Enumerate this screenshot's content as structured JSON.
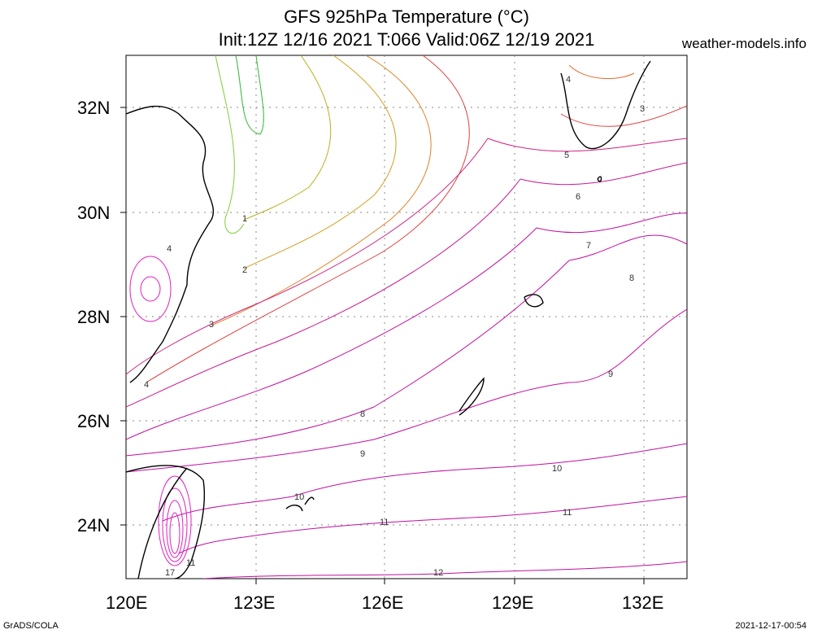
{
  "title_line1": "GFS 925hPa Temperature (°C)",
  "title_line2": "Init:12Z 12/16 2021 T:066 Valid:06Z 12/19 2021",
  "site": "weather-models.info",
  "footer_left": "GrADS/COLA",
  "footer_right": "2021-12-17-00:54",
  "lat_labels": [
    "32N",
    "30N",
    "28N",
    "26N",
    "24N"
  ],
  "lon_labels": [
    "120E",
    "123E",
    "126E",
    "129E",
    "132E"
  ],
  "contour_labels": [
    "1",
    "2",
    "3",
    "4",
    "4",
    "5",
    "6",
    "7",
    "8",
    "8",
    "9",
    "9",
    "10",
    "10",
    "11",
    "11",
    "11",
    "12",
    "17",
    "3",
    "4"
  ],
  "colors": {
    "cold": "#2db82d",
    "mid": "#c8a020",
    "warm": "#e04040",
    "hot": "#c000a0",
    "coast": "#000000"
  }
}
